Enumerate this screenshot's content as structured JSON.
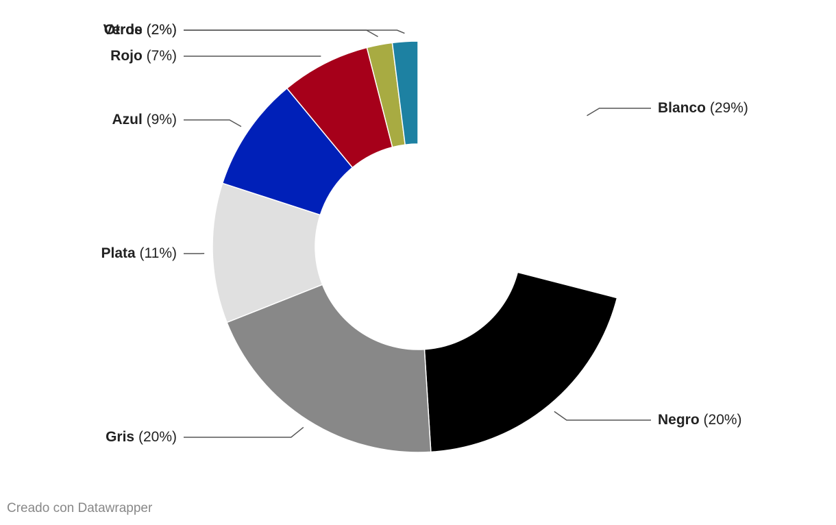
{
  "chart_data": {
    "type": "donut",
    "categories": [
      "Blanco",
      "Negro",
      "Gris",
      "Plata",
      "Azul",
      "Rojo",
      "Verde",
      "Otros"
    ],
    "values": [
      29,
      20,
      20,
      11,
      9,
      7,
      2,
      2
    ],
    "value_labels": [
      "(29%)",
      "(20%)",
      "(20%)",
      "(11%)",
      "(9%)",
      "(7%)",
      "(2%)",
      "(2%)"
    ],
    "colors": [
      "#ffffff",
      "#000000",
      "#888888",
      "#e0e0e0",
      "#0020b8",
      "#a6001a",
      "#a8ab42",
      "#1d81a2"
    ],
    "footer": "Creado con Datawrapper"
  }
}
